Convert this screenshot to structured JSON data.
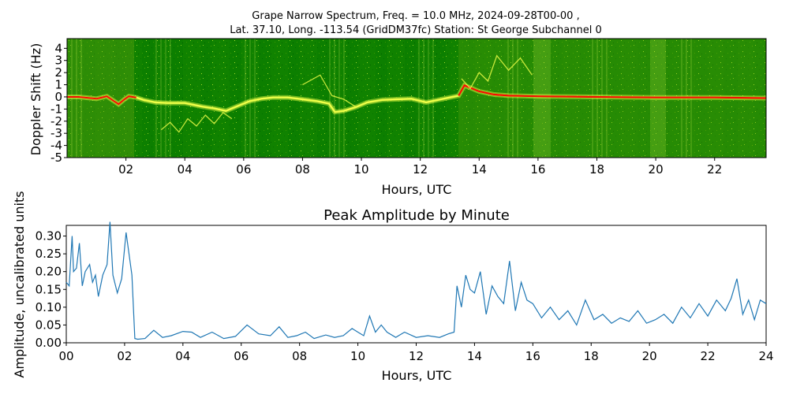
{
  "window": {
    "title": ""
  },
  "charts": {
    "spectrum": {
      "title_line_1": "Grape Narrow Spectrum, Freq. = 10.0 MHz, 2024-09-28T00-00 ,",
      "title_line_2": "Lat.  37.10, Long. -113.54 (GridDM37fc) Station: St George Subchannel 0",
      "xlabel": "Hours, UTC",
      "ylabel": "Doppler Shift (Hz)"
    },
    "amplitude": {
      "title": "Peak Amplitude by Minute",
      "xlabel": "Hours, UTC",
      "ylabel": "Amplitude, uncalibrated units"
    }
  },
  "chart_data": [
    {
      "type": "heatmap",
      "title": "Grape Narrow Spectrum, Freq. = 10.0 MHz, 2024-09-28T00-00 ,\nLat.  37.10, Long. -113.54 (GridDM37fc) Station: St George Subchannel 0",
      "xlabel": "Hours, UTC",
      "ylabel": "Doppler Shift (Hz)",
      "xlim": [
        0,
        23.75
      ],
      "ylim": [
        -5,
        4.8
      ],
      "x_ticks": [
        "02",
        "04",
        "06",
        "08",
        "10",
        "12",
        "14",
        "16",
        "18",
        "20",
        "22"
      ],
      "x_tick_values": [
        2,
        4,
        6,
        8,
        10,
        12,
        14,
        16,
        18,
        20,
        22
      ],
      "y_ticks": [
        "4",
        "3",
        "2",
        "1",
        "0",
        "-1",
        "-2",
        "-3",
        "-4",
        "-5"
      ],
      "y_tick_values": [
        4,
        3,
        2,
        1,
        0,
        -1,
        -2,
        -3,
        -4,
        -5
      ],
      "colors": {
        "background_green": "#0c7f00",
        "dark_green": "#006100",
        "yellow": "#f0ff48",
        "red": "#f60c00"
      },
      "main_trace": {
        "x": [
          0,
          0.4,
          0.8,
          1.0,
          1.35,
          1.6,
          1.75,
          1.95,
          2.1,
          2.35,
          2.6,
          3.0,
          3.4,
          4.0,
          4.6,
          5.0,
          5.4,
          5.8,
          6.2,
          6.6,
          7.0,
          7.5,
          8.0,
          8.5,
          8.9,
          9.1,
          9.4,
          9.8,
          10.2,
          10.7,
          11.2,
          11.7,
          12.2,
          12.6,
          13.0,
          13.3,
          13.5,
          14.0,
          14.5,
          15.0,
          16.0,
          18.0,
          20.0,
          22.0,
          23.75
        ],
        "y": [
          0,
          0,
          -0.1,
          -0.15,
          0.05,
          -0.35,
          -0.6,
          -0.2,
          0.05,
          -0.05,
          -0.25,
          -0.45,
          -0.5,
          -0.5,
          -0.8,
          -0.95,
          -1.15,
          -0.75,
          -0.35,
          -0.15,
          -0.05,
          -0.05,
          -0.2,
          -0.35,
          -0.55,
          -1.25,
          -1.15,
          -0.85,
          -0.45,
          -0.25,
          -0.2,
          -0.15,
          -0.45,
          -0.25,
          -0.05,
          0.1,
          0.95,
          0.45,
          0.2,
          0.1,
          0.05,
          0,
          -0.05,
          -0.05,
          -0.1
        ]
      },
      "loose_traces": [
        {
          "x": [
            3.2,
            3.5,
            3.8,
            4.1,
            4.4,
            4.7,
            5.0,
            5.3,
            5.6
          ],
          "y": [
            -2.7,
            -2.1,
            -2.9,
            -1.8,
            -2.4,
            -1.5,
            -2.2,
            -1.3,
            -1.8
          ]
        },
        {
          "x": [
            8.0,
            8.6,
            9.0,
            9.4,
            9.8
          ],
          "y": [
            1.0,
            1.8,
            0.1,
            -0.2,
            -0.8
          ]
        },
        {
          "x": [
            13.4,
            13.7,
            14.0,
            14.3,
            14.6,
            15.0,
            15.4,
            15.8
          ],
          "y": [
            1.5,
            0.7,
            2.0,
            1.3,
            3.4,
            2.2,
            3.2,
            1.8
          ]
        }
      ]
    },
    {
      "type": "line",
      "title": "Peak Amplitude by Minute",
      "xlabel": "Hours, UTC",
      "ylabel": "Amplitude, uncalibrated units",
      "xlim": [
        0,
        24
      ],
      "ylim": [
        0,
        0.33
      ],
      "x_ticks": [
        "00",
        "02",
        "04",
        "06",
        "08",
        "10",
        "12",
        "14",
        "16",
        "18",
        "20",
        "22",
        "24"
      ],
      "x_tick_values": [
        0,
        2,
        4,
        6,
        8,
        10,
        12,
        14,
        16,
        18,
        20,
        22,
        24
      ],
      "y_ticks": [
        "0.30",
        "0.25",
        "0.20",
        "0.15",
        "0.10",
        "0.05",
        "0.00"
      ],
      "y_tick_values": [
        0.3,
        0.25,
        0.2,
        0.15,
        0.1,
        0.05,
        0.0
      ],
      "colors": {
        "series": "#1f77b4"
      },
      "series": [
        {
          "x": [
            0,
            0.1,
            0.2,
            0.25,
            0.35,
            0.45,
            0.55,
            0.65,
            0.8,
            0.9,
            1.0,
            1.1,
            1.25,
            1.4,
            1.5,
            1.6,
            1.75,
            1.9,
            2.05,
            2.25,
            2.35,
            2.45,
            2.7,
            3.0,
            3.3,
            3.6,
            4.0,
            4.3,
            4.6,
            5.0,
            5.4,
            5.8,
            6.2,
            6.6,
            7.0,
            7.3,
            7.6,
            7.9,
            8.2,
            8.5,
            8.9,
            9.2,
            9.5,
            9.8,
            10.0,
            10.2,
            10.4,
            10.6,
            10.8,
            11.0,
            11.3,
            11.6,
            12.0,
            12.4,
            12.8,
            13.1,
            13.3,
            13.4,
            13.55,
            13.7,
            13.85,
            14.0,
            14.2,
            14.4,
            14.6,
            14.8,
            15.0,
            15.2,
            15.4,
            15.6,
            15.8,
            16.0,
            16.3,
            16.6,
            16.9,
            17.2,
            17.5,
            17.8,
            18.1,
            18.4,
            18.7,
            19.0,
            19.3,
            19.6,
            19.9,
            20.2,
            20.5,
            20.8,
            21.1,
            21.4,
            21.7,
            22.0,
            22.3,
            22.6,
            22.8,
            23.0,
            23.2,
            23.4,
            23.6,
            23.8,
            24.0
          ],
          "values": [
            0.17,
            0.16,
            0.3,
            0.2,
            0.21,
            0.28,
            0.16,
            0.2,
            0.22,
            0.17,
            0.19,
            0.13,
            0.19,
            0.22,
            0.34,
            0.19,
            0.14,
            0.18,
            0.31,
            0.19,
            0.012,
            0.01,
            0.012,
            0.035,
            0.015,
            0.02,
            0.032,
            0.03,
            0.015,
            0.03,
            0.012,
            0.018,
            0.05,
            0.025,
            0.02,
            0.045,
            0.015,
            0.02,
            0.03,
            0.012,
            0.022,
            0.015,
            0.02,
            0.04,
            0.03,
            0.02,
            0.075,
            0.03,
            0.05,
            0.03,
            0.015,
            0.03,
            0.015,
            0.02,
            0.015,
            0.025,
            0.03,
            0.16,
            0.1,
            0.19,
            0.15,
            0.14,
            0.2,
            0.08,
            0.16,
            0.13,
            0.11,
            0.23,
            0.09,
            0.17,
            0.12,
            0.11,
            0.07,
            0.1,
            0.065,
            0.09,
            0.05,
            0.12,
            0.065,
            0.08,
            0.055,
            0.07,
            0.06,
            0.09,
            0.055,
            0.065,
            0.08,
            0.055,
            0.1,
            0.07,
            0.11,
            0.075,
            0.12,
            0.09,
            0.125,
            0.18,
            0.08,
            0.12,
            0.065,
            0.12,
            0.11
          ]
        }
      ]
    }
  ]
}
